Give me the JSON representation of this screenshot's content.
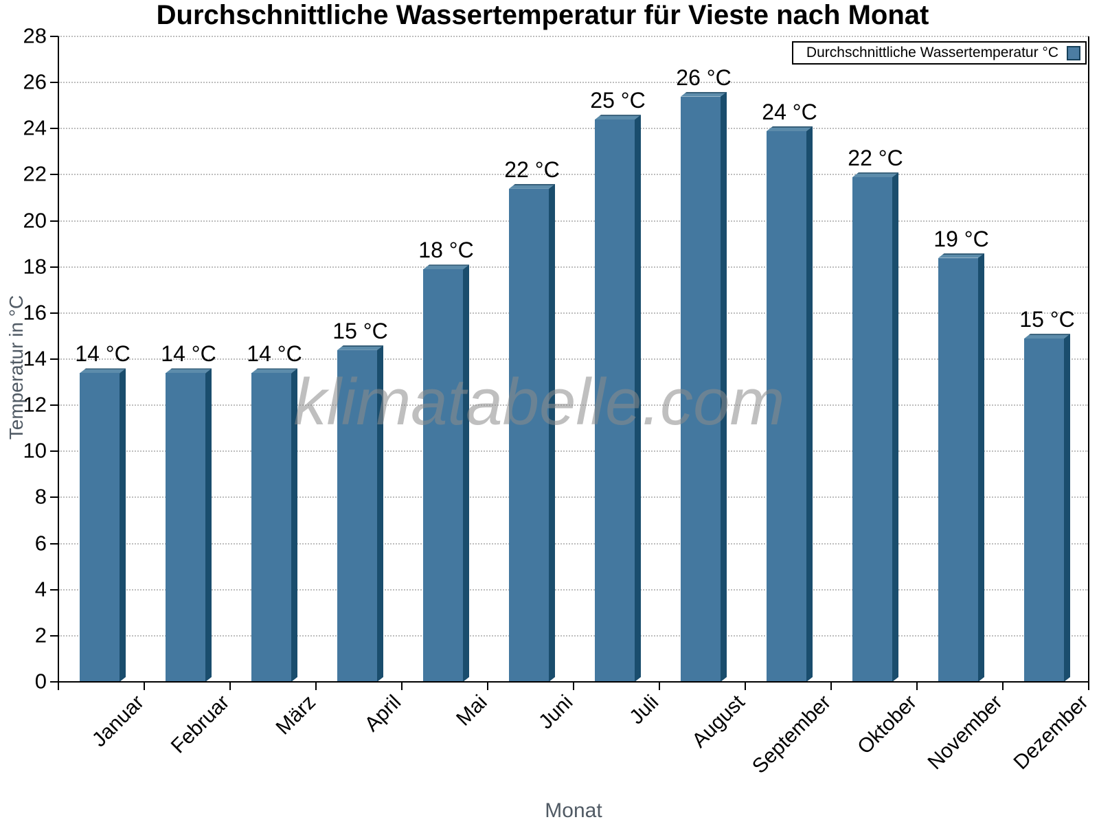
{
  "title": "Durchschnittliche Wassertemperatur für Vieste nach Monat",
  "legend": {
    "label": "Durchschnittliche Wassertemperatur °C"
  },
  "watermark": "klimatabelle.com",
  "chart_data": {
    "type": "bar",
    "title": "Durchschnittliche Wassertemperatur für Vieste nach Monat",
    "xlabel": "Monat",
    "ylabel": "Temperatur in °C",
    "categories": [
      "Januar",
      "Februar",
      "März",
      "April",
      "Mai",
      "Juni",
      "Juli",
      "August",
      "September",
      "Oktober",
      "November",
      "Dezember"
    ],
    "values": [
      13.6,
      13.6,
      13.6,
      14.6,
      18.1,
      21.6,
      24.6,
      25.6,
      24.1,
      22.1,
      18.6,
      15.1
    ],
    "bar_labels": [
      "14 °C",
      "14 °C",
      "14 °C",
      "15 °C",
      "18 °C",
      "22 °C",
      "25 °C",
      "26 °C",
      "24 °C",
      "22 °C",
      "19 °C",
      "15 °C"
    ],
    "series": [
      {
        "name": "Durchschnittliche Wassertemperatur °C"
      }
    ],
    "ylim": [
      0,
      28
    ],
    "yticks": [
      0,
      2,
      4,
      6,
      8,
      10,
      12,
      14,
      16,
      18,
      20,
      22,
      24,
      26,
      28
    ],
    "grid": "horizontal-dotted",
    "legend_position": "top-right",
    "colors": {
      "bar_face": "#44789F",
      "bar_top": "#5C8CAB",
      "bar_side": "#1A4D6D",
      "legend_swatch": "#4C7DA3",
      "axis": "#000000",
      "grid": "#BDBDBD",
      "axis_title": "#505A64",
      "watermark": "#8C8C8C"
    }
  }
}
